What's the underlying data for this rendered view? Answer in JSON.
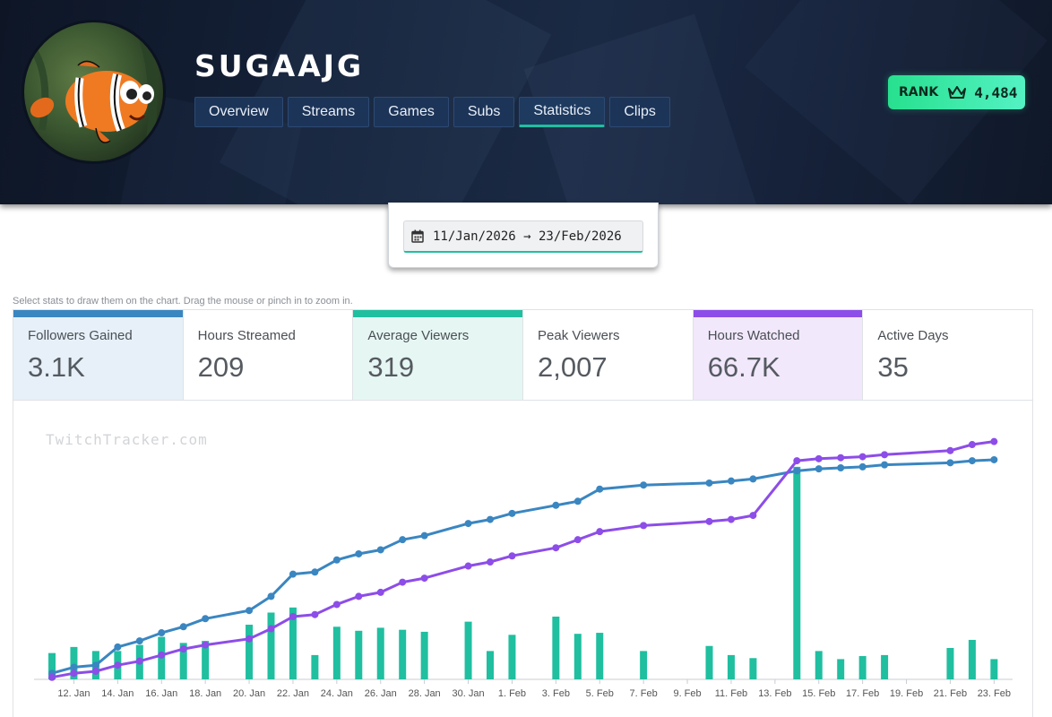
{
  "channel": {
    "name": "SUGAAJG"
  },
  "nav": {
    "tabs": [
      {
        "label": "Overview"
      },
      {
        "label": "Streams"
      },
      {
        "label": "Games"
      },
      {
        "label": "Subs"
      },
      {
        "label": "Statistics",
        "active": true
      },
      {
        "label": "Clips"
      }
    ]
  },
  "rank": {
    "label": "RANK",
    "value": "4,484",
    "icon": "crown-icon"
  },
  "date_range": {
    "text": "11/Jan/2026 → 23/Feb/2026",
    "icon": "calendar-icon"
  },
  "hint": "Select stats to draw them on the chart. Drag the mouse or pinch in to zoom in.",
  "stats": [
    {
      "label": "Followers Gained",
      "value": "3.1K",
      "selected": true,
      "color": "#3a86c1"
    },
    {
      "label": "Hours Streamed",
      "value": "209",
      "selected": false
    },
    {
      "label": "Average Viewers",
      "value": "319",
      "selected": true,
      "color": "#1fbfa0"
    },
    {
      "label": "Peak Viewers",
      "value": "2,007",
      "selected": false
    },
    {
      "label": "Hours Watched",
      "value": "66.7K",
      "selected": true,
      "color": "#8d4de8"
    },
    {
      "label": "Active Days",
      "value": "35",
      "selected": false
    }
  ],
  "watermark": "TwitchTracker.com",
  "chart_data": {
    "type": "bar+line",
    "x_tick_labels": [
      "12. Jan",
      "14. Jan",
      "16. Jan",
      "18. Jan",
      "20. Jan",
      "22. Jan",
      "24. Jan",
      "26. Jan",
      "28. Jan",
      "30. Jan",
      "1. Feb",
      "3. Feb",
      "5. Feb",
      "7. Feb",
      "9. Feb",
      "11. Feb",
      "13. Feb",
      "15. Feb",
      "17. Feb",
      "19. Feb",
      "21. Feb",
      "23. Feb"
    ],
    "x_range": [
      "2026-01-11",
      "2026-02-23"
    ],
    "series": [
      {
        "name": "Average Viewers",
        "type": "bar",
        "color": "#1fbfa0",
        "points": [
          [
            "2026-01-11",
            130
          ],
          [
            "2026-01-12",
            160
          ],
          [
            "2026-01-13",
            140
          ],
          [
            "2026-01-14",
            140
          ],
          [
            "2026-01-15",
            170
          ],
          [
            "2026-01-16",
            210
          ],
          [
            "2026-01-17",
            180
          ],
          [
            "2026-01-18",
            190
          ],
          [
            "2026-01-20",
            270
          ],
          [
            "2026-01-21",
            330
          ],
          [
            "2026-01-22",
            355
          ],
          [
            "2026-01-23",
            120
          ],
          [
            "2026-01-24",
            260
          ],
          [
            "2026-01-25",
            240
          ],
          [
            "2026-01-26",
            255
          ],
          [
            "2026-01-27",
            245
          ],
          [
            "2026-01-28",
            235
          ],
          [
            "2026-01-30",
            285
          ],
          [
            "2026-01-31",
            140
          ],
          [
            "2026-02-01",
            220
          ],
          [
            "2026-02-03",
            310
          ],
          [
            "2026-02-04",
            225
          ],
          [
            "2026-02-05",
            230
          ],
          [
            "2026-02-07",
            140
          ],
          [
            "2026-02-10",
            165
          ],
          [
            "2026-02-11",
            120
          ],
          [
            "2026-02-12",
            105
          ],
          [
            "2026-02-14",
            1050
          ],
          [
            "2026-02-15",
            140
          ],
          [
            "2026-02-16",
            100
          ],
          [
            "2026-02-17",
            115
          ],
          [
            "2026-02-18",
            120
          ],
          [
            "2026-02-21",
            155
          ],
          [
            "2026-02-22",
            195
          ],
          [
            "2026-02-23",
            100
          ]
        ]
      },
      {
        "name": "Followers Gained",
        "type": "line",
        "color": "#3a86c1",
        "points": [
          [
            "2026-01-11",
            30
          ],
          [
            "2026-01-12",
            60
          ],
          [
            "2026-01-13",
            70
          ],
          [
            "2026-01-14",
            160
          ],
          [
            "2026-01-15",
            190
          ],
          [
            "2026-01-16",
            230
          ],
          [
            "2026-01-17",
            260
          ],
          [
            "2026-01-18",
            300
          ],
          [
            "2026-01-20",
            340
          ],
          [
            "2026-01-21",
            410
          ],
          [
            "2026-01-22",
            520
          ],
          [
            "2026-01-23",
            530
          ],
          [
            "2026-01-24",
            590
          ],
          [
            "2026-01-25",
            620
          ],
          [
            "2026-01-26",
            640
          ],
          [
            "2026-01-27",
            690
          ],
          [
            "2026-01-28",
            710
          ],
          [
            "2026-01-30",
            770
          ],
          [
            "2026-01-31",
            790
          ],
          [
            "2026-02-01",
            820
          ],
          [
            "2026-02-03",
            860
          ],
          [
            "2026-02-04",
            880
          ],
          [
            "2026-02-05",
            940
          ],
          [
            "2026-02-07",
            960
          ],
          [
            "2026-02-10",
            970
          ],
          [
            "2026-02-11",
            980
          ],
          [
            "2026-02-12",
            990
          ],
          [
            "2026-02-14",
            1030
          ],
          [
            "2026-02-15",
            1040
          ],
          [
            "2026-02-16",
            1045
          ],
          [
            "2026-02-17",
            1050
          ],
          [
            "2026-02-18",
            1060
          ],
          [
            "2026-02-21",
            1070
          ],
          [
            "2026-02-22",
            1080
          ],
          [
            "2026-02-23",
            1085
          ]
        ]
      },
      {
        "name": "Hours Watched",
        "type": "line",
        "color": "#8d4de8",
        "points": [
          [
            "2026-01-11",
            10
          ],
          [
            "2026-01-12",
            30
          ],
          [
            "2026-01-13",
            40
          ],
          [
            "2026-01-14",
            70
          ],
          [
            "2026-01-15",
            90
          ],
          [
            "2026-01-16",
            120
          ],
          [
            "2026-01-17",
            150
          ],
          [
            "2026-01-18",
            170
          ],
          [
            "2026-01-20",
            200
          ],
          [
            "2026-01-21",
            250
          ],
          [
            "2026-01-22",
            310
          ],
          [
            "2026-01-23",
            320
          ],
          [
            "2026-01-24",
            370
          ],
          [
            "2026-01-25",
            410
          ],
          [
            "2026-01-26",
            430
          ],
          [
            "2026-01-27",
            480
          ],
          [
            "2026-01-28",
            500
          ],
          [
            "2026-01-30",
            560
          ],
          [
            "2026-01-31",
            580
          ],
          [
            "2026-02-01",
            610
          ],
          [
            "2026-02-03",
            650
          ],
          [
            "2026-02-04",
            690
          ],
          [
            "2026-02-05",
            730
          ],
          [
            "2026-02-07",
            760
          ],
          [
            "2026-02-10",
            780
          ],
          [
            "2026-02-11",
            790
          ],
          [
            "2026-02-12",
            810
          ],
          [
            "2026-02-14",
            1080
          ],
          [
            "2026-02-15",
            1090
          ],
          [
            "2026-02-16",
            1095
          ],
          [
            "2026-02-17",
            1100
          ],
          [
            "2026-02-18",
            1110
          ],
          [
            "2026-02-21",
            1130
          ],
          [
            "2026-02-22",
            1160
          ],
          [
            "2026-02-23",
            1175
          ]
        ]
      }
    ],
    "grid": false,
    "legend": "none"
  }
}
